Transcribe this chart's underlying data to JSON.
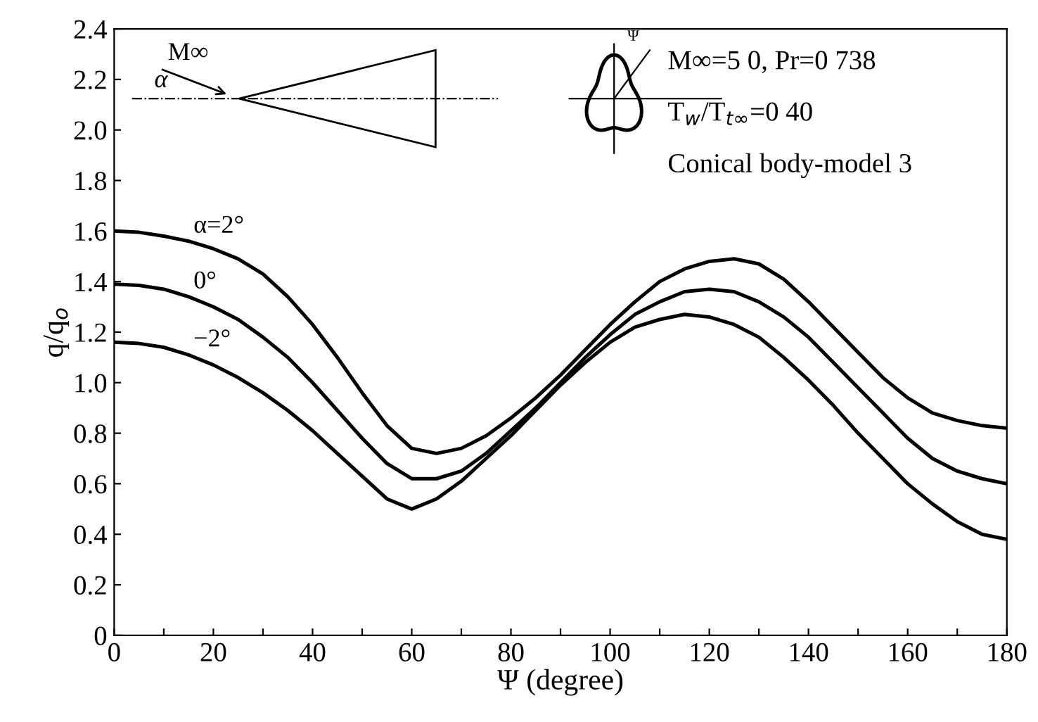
{
  "chart_data": {
    "type": "line",
    "xlabel": "Ψ (degree)",
    "ylabel": "q/q$_{o}$",
    "x": [
      0,
      5,
      10,
      15,
      20,
      25,
      30,
      35,
      40,
      45,
      50,
      55,
      60,
      65,
      70,
      75,
      80,
      85,
      90,
      95,
      100,
      105,
      110,
      115,
      120,
      125,
      130,
      135,
      140,
      145,
      150,
      155,
      160,
      165,
      170,
      175,
      180
    ],
    "series": [
      {
        "name": "α=2°",
        "color": "#000000",
        "values": [
          1.6,
          1.595,
          1.58,
          1.56,
          1.53,
          1.49,
          1.43,
          1.34,
          1.23,
          1.1,
          0.96,
          0.83,
          0.74,
          0.72,
          0.74,
          0.79,
          0.86,
          0.94,
          1.03,
          1.13,
          1.23,
          1.32,
          1.4,
          1.45,
          1.48,
          1.49,
          1.47,
          1.41,
          1.32,
          1.22,
          1.12,
          1.02,
          0.94,
          0.88,
          0.85,
          0.83,
          0.82
        ]
      },
      {
        "name": "0°",
        "color": "#000000",
        "values": [
          1.39,
          1.385,
          1.37,
          1.34,
          1.3,
          1.25,
          1.18,
          1.1,
          1.0,
          0.89,
          0.78,
          0.68,
          0.62,
          0.62,
          0.65,
          0.72,
          0.81,
          0.9,
          1.0,
          1.1,
          1.19,
          1.27,
          1.32,
          1.36,
          1.37,
          1.36,
          1.32,
          1.26,
          1.18,
          1.08,
          0.98,
          0.88,
          0.78,
          0.7,
          0.65,
          0.62,
          0.6
        ]
      },
      {
        "name": "−2°",
        "color": "#000000",
        "values": [
          1.16,
          1.155,
          1.14,
          1.11,
          1.07,
          1.02,
          0.96,
          0.89,
          0.81,
          0.72,
          0.63,
          0.54,
          0.5,
          0.54,
          0.61,
          0.7,
          0.79,
          0.89,
          0.99,
          1.08,
          1.16,
          1.22,
          1.25,
          1.27,
          1.26,
          1.23,
          1.18,
          1.1,
          1.01,
          0.91,
          0.8,
          0.7,
          0.6,
          0.52,
          0.45,
          0.4,
          0.38
        ]
      }
    ],
    "xlim": [
      0,
      180
    ],
    "xticks": [
      0,
      {
        "value": 10,
        "label": null
      },
      20,
      {
        "value": 30,
        "label": null
      },
      40,
      {
        "value": 50,
        "label": null
      },
      60,
      {
        "value": 70,
        "label": null
      },
      80,
      {
        "value": 90,
        "label": null
      },
      100,
      {
        "value": 110,
        "label": null
      },
      120,
      {
        "value": 130,
        "label": null
      },
      140,
      {
        "value": 150,
        "label": null
      },
      160,
      {
        "value": 170,
        "label": null
      },
      180
    ],
    "ylim": [
      0,
      2.4
    ],
    "yticks": [
      0,
      0.2,
      0.4,
      0.6,
      0.8,
      {
        "value": 1,
        "label": "1.0"
      },
      1.2,
      1.4,
      1.6,
      1.8,
      {
        "value": 2,
        "label": "2.0"
      },
      2.2,
      2.4
    ],
    "annotations": [
      "M∞=5 0, Pr=0 738",
      "T$_{w}$/T$_{t∞}$=0 40",
      "Conical body-model 3",
      "M∞",
      "α",
      "Ψ"
    ],
    "grid": false,
    "legend": false,
    "marker": "none",
    "line_style": "solid"
  }
}
